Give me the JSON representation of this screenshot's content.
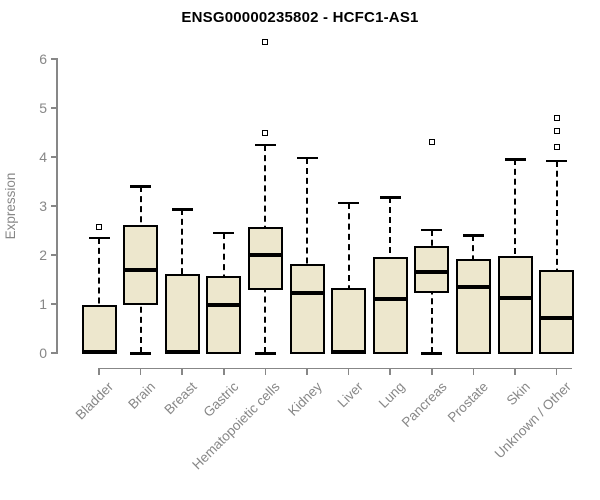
{
  "chart_data": {
    "type": "boxplot",
    "title": "ENSG00000235802 - HCFC1-AS1",
    "ylabel": "Expression",
    "xlabel": "",
    "ylim": [
      0,
      6
    ],
    "yticks": [
      0,
      1,
      2,
      3,
      4,
      5,
      6
    ],
    "grid": false,
    "legend": "none",
    "box_fill": "#EDE7CD",
    "box_border": "#000000",
    "axis_color": "#878787",
    "label_color": "#878787",
    "title_color": "#000000",
    "categories": [
      "Bladder",
      "Brain",
      "Breast",
      "Gastric",
      "Hematopoietic cells",
      "Kidney",
      "Liver",
      "Lung",
      "Pancreas",
      "Prostate",
      "Skin",
      "Unknown / Other"
    ],
    "boxes": [
      {
        "category": "Bladder",
        "q1": 0,
        "median": 0.02,
        "q3": 0.95,
        "whisker_low": null,
        "whisker_high": 2.35,
        "outliers": [
          2.57
        ]
      },
      {
        "category": "Brain",
        "q1": 1.0,
        "median": 1.7,
        "q3": 2.6,
        "whisker_low": 0.0,
        "whisker_high": 3.4,
        "outliers": []
      },
      {
        "category": "Breast",
        "q1": 0,
        "median": 0.03,
        "q3": 1.6,
        "whisker_low": null,
        "whisker_high": 2.93,
        "outliers": []
      },
      {
        "category": "Gastric",
        "q1": 0,
        "median": 0.98,
        "q3": 1.55,
        "whisker_low": null,
        "whisker_high": 2.45,
        "outliers": []
      },
      {
        "category": "Hematopoietic cells",
        "q1": 1.3,
        "median": 2.0,
        "q3": 2.55,
        "whisker_low": 0.0,
        "whisker_high": 4.25,
        "outliers": [
          4.5,
          6.35
        ]
      },
      {
        "category": "Kidney",
        "q1": 0,
        "median": 1.22,
        "q3": 1.8,
        "whisker_low": null,
        "whisker_high": 3.98,
        "outliers": []
      },
      {
        "category": "Liver",
        "q1": 0,
        "median": 0.03,
        "q3": 1.3,
        "whisker_low": null,
        "whisker_high": 3.07,
        "outliers": []
      },
      {
        "category": "Lung",
        "q1": 0,
        "median": 1.1,
        "q3": 1.94,
        "whisker_low": null,
        "whisker_high": 3.18,
        "outliers": []
      },
      {
        "category": "Pancreas",
        "q1": 1.24,
        "median": 1.65,
        "q3": 2.16,
        "whisker_low": 0.0,
        "whisker_high": 2.52,
        "outliers": [
          4.31
        ]
      },
      {
        "category": "Prostate",
        "q1": 0,
        "median": 1.35,
        "q3": 1.9,
        "whisker_low": null,
        "whisker_high": 2.4,
        "outliers": []
      },
      {
        "category": "Skin",
        "q1": 0,
        "median": 1.12,
        "q3": 1.96,
        "whisker_low": null,
        "whisker_high": 3.95,
        "outliers": []
      },
      {
        "category": "Unknown / Other",
        "q1": 0,
        "median": 0.72,
        "q3": 1.67,
        "whisker_low": null,
        "whisker_high": 3.92,
        "outliers": [
          4.2,
          4.53,
          4.8
        ]
      }
    ]
  }
}
